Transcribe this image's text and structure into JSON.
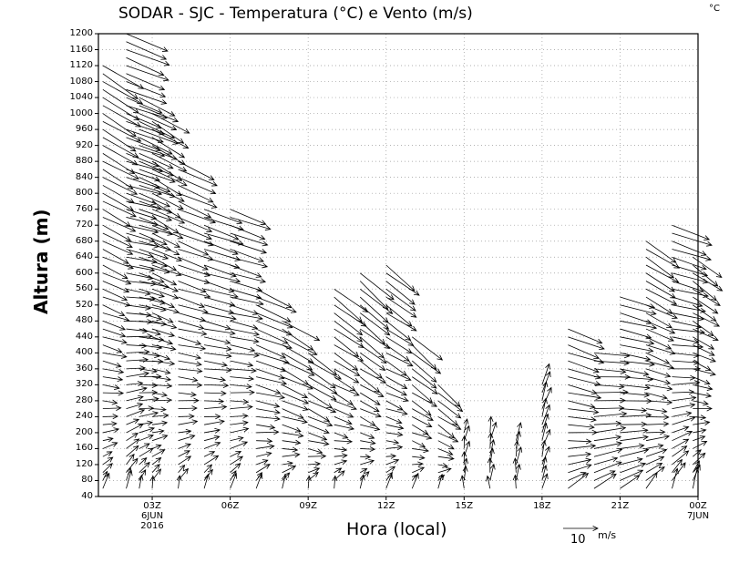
{
  "chart_data": {
    "type": "vector",
    "title": "SODAR - SJC - Temperatura (°C) e Vento (m/s)",
    "colorbar_unit": "°C",
    "xlabel": "Hora (local)",
    "ylabel": "Altura (m)",
    "ylim": [
      40,
      1200
    ],
    "yticks": [
      40,
      80,
      120,
      160,
      200,
      240,
      280,
      320,
      360,
      400,
      440,
      480,
      520,
      560,
      600,
      640,
      680,
      720,
      760,
      800,
      840,
      880,
      920,
      960,
      1000,
      1040,
      1080,
      1120,
      1160,
      1200
    ],
    "xlim_hours": [
      0.93,
      24
    ],
    "xticks": [
      {
        "hour": 3,
        "label": "03Z",
        "sub": [
          "6JUN",
          "2016"
        ]
      },
      {
        "hour": 6,
        "label": "06Z",
        "sub": []
      },
      {
        "hour": 9,
        "label": "09Z",
        "sub": []
      },
      {
        "hour": 12,
        "label": "12Z",
        "sub": []
      },
      {
        "hour": 15,
        "label": "15Z",
        "sub": []
      },
      {
        "hour": 18,
        "label": "18Z",
        "sub": []
      },
      {
        "hour": 21,
        "label": "21Z",
        "sub": []
      },
      {
        "hour": 24,
        "label": "00Z",
        "sub": [
          "7JUN"
        ]
      }
    ],
    "grid": true,
    "reference_vector": {
      "value": "10",
      "unit": "m/s"
    },
    "columns": [
      {
        "hour": 1.1,
        "top": 1120,
        "u_top": 11,
        "v_top": -7,
        "u_low": 1,
        "v_low": 4
      },
      {
        "hour": 2,
        "top": 1200,
        "u_top": 12,
        "v_top": -5,
        "u_low": 1,
        "v_low": 5
      },
      {
        "hour": 2.5,
        "top": 1050,
        "u_top": 11,
        "v_top": -5,
        "u_low": 1,
        "v_low": 4
      },
      {
        "hour": 3,
        "top": 1000,
        "u_top": 10,
        "v_top": -6,
        "u_low": 1,
        "v_low": 4
      },
      {
        "hour": 4,
        "top": 880,
        "u_top": 11,
        "v_top": -5,
        "u_low": 1,
        "v_low": 4
      },
      {
        "hour": 5,
        "top": 760,
        "u_top": 11,
        "v_top": -4,
        "u_low": 1,
        "v_low": 4
      },
      {
        "hour": 6,
        "top": 760,
        "u_top": 11,
        "v_top": -4,
        "u_low": 1,
        "v_low": 4
      },
      {
        "hour": 7,
        "top": 560,
        "u_top": 11,
        "v_top": -5,
        "u_low": 1,
        "v_low": 4
      },
      {
        "hour": 8,
        "top": 480,
        "u_top": 10,
        "v_top": -6,
        "u_low": 1,
        "v_low": 4
      },
      {
        "hour": 9,
        "top": 400,
        "u_top": 9,
        "v_top": -6,
        "u_low": 1,
        "v_low": 4
      },
      {
        "hour": 10,
        "top": 560,
        "u_top": 9,
        "v_top": -7,
        "u_low": 1,
        "v_low": 4
      },
      {
        "hour": 11,
        "top": 600,
        "u_top": 9,
        "v_top": -8,
        "u_low": 1,
        "v_low": 4
      },
      {
        "hour": 12,
        "top": 620,
        "u_top": 9,
        "v_top": -7,
        "u_low": 1,
        "v_low": 4
      },
      {
        "hour": 13,
        "top": 440,
        "u_top": 8,
        "v_top": -7,
        "u_low": 1,
        "v_low": 4
      },
      {
        "hour": 14,
        "top": 320,
        "u_top": 7,
        "v_top": -6,
        "u_low": 1,
        "v_low": 4
      },
      {
        "hour": 15,
        "top": 200,
        "u_top": 1,
        "v_top": 4,
        "u_low": 0,
        "v_low": 4
      },
      {
        "hour": 16,
        "top": 200,
        "u_top": 1,
        "v_top": 5,
        "u_low": 0,
        "v_low": 4
      },
      {
        "hour": 17,
        "top": 180,
        "u_top": 1,
        "v_top": 5,
        "u_low": 0,
        "v_low": 4
      },
      {
        "hour": 18,
        "top": 320,
        "u_top": 2,
        "v_top": 6,
        "u_low": 1,
        "v_low": 4
      },
      {
        "hour": 19,
        "top": 460,
        "u_top": 10,
        "v_top": -4,
        "u_low": 5,
        "v_low": 4
      },
      {
        "hour": 20,
        "top": 400,
        "u_top": 10,
        "v_top": -1,
        "u_low": 6,
        "v_low": 4
      },
      {
        "hour": 21,
        "top": 540,
        "u_top": 10,
        "v_top": -3,
        "u_low": 6,
        "v_low": 4
      },
      {
        "hour": 22,
        "top": 680,
        "u_top": 9,
        "v_top": -6,
        "u_low": 4,
        "v_low": 5
      },
      {
        "hour": 23,
        "top": 720,
        "u_top": 11,
        "v_top": -4,
        "u_low": 2,
        "v_low": 6
      },
      {
        "hour": 23.8,
        "top": 640,
        "u_top": 8,
        "v_top": -6,
        "u_low": 1,
        "v_low": 6
      }
    ]
  }
}
